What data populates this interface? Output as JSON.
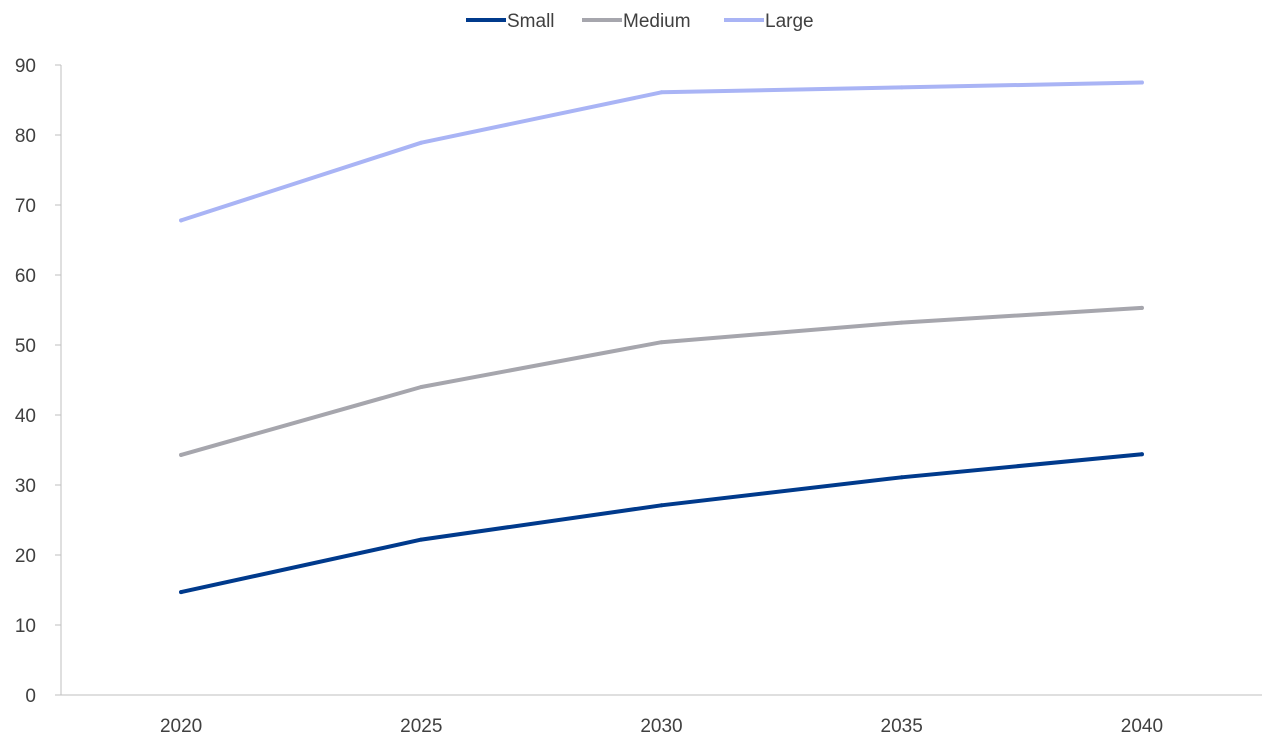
{
  "chart_data": {
    "type": "line",
    "categories": [
      "2020",
      "2025",
      "2030",
      "2035",
      "2040"
    ],
    "series": [
      {
        "name": "Small",
        "color": "#003a8c",
        "values": [
          14.7,
          22.2,
          27.1,
          31.1,
          34.4
        ]
      },
      {
        "name": "Medium",
        "color": "#a6a6ad",
        "values": [
          34.3,
          44.0,
          50.4,
          53.2,
          55.3
        ]
      },
      {
        "name": "Large",
        "color": "#a9b4f5",
        "values": [
          67.8,
          78.9,
          86.1,
          86.8,
          87.5
        ]
      }
    ],
    "yticks": [
      "0",
      "10",
      "20",
      "30",
      "40",
      "50",
      "60",
      "70",
      "80",
      "90"
    ],
    "ylim": [
      0,
      90
    ],
    "legend_position": "top-center",
    "grid": false,
    "axis_color": "#bfbfbf"
  }
}
